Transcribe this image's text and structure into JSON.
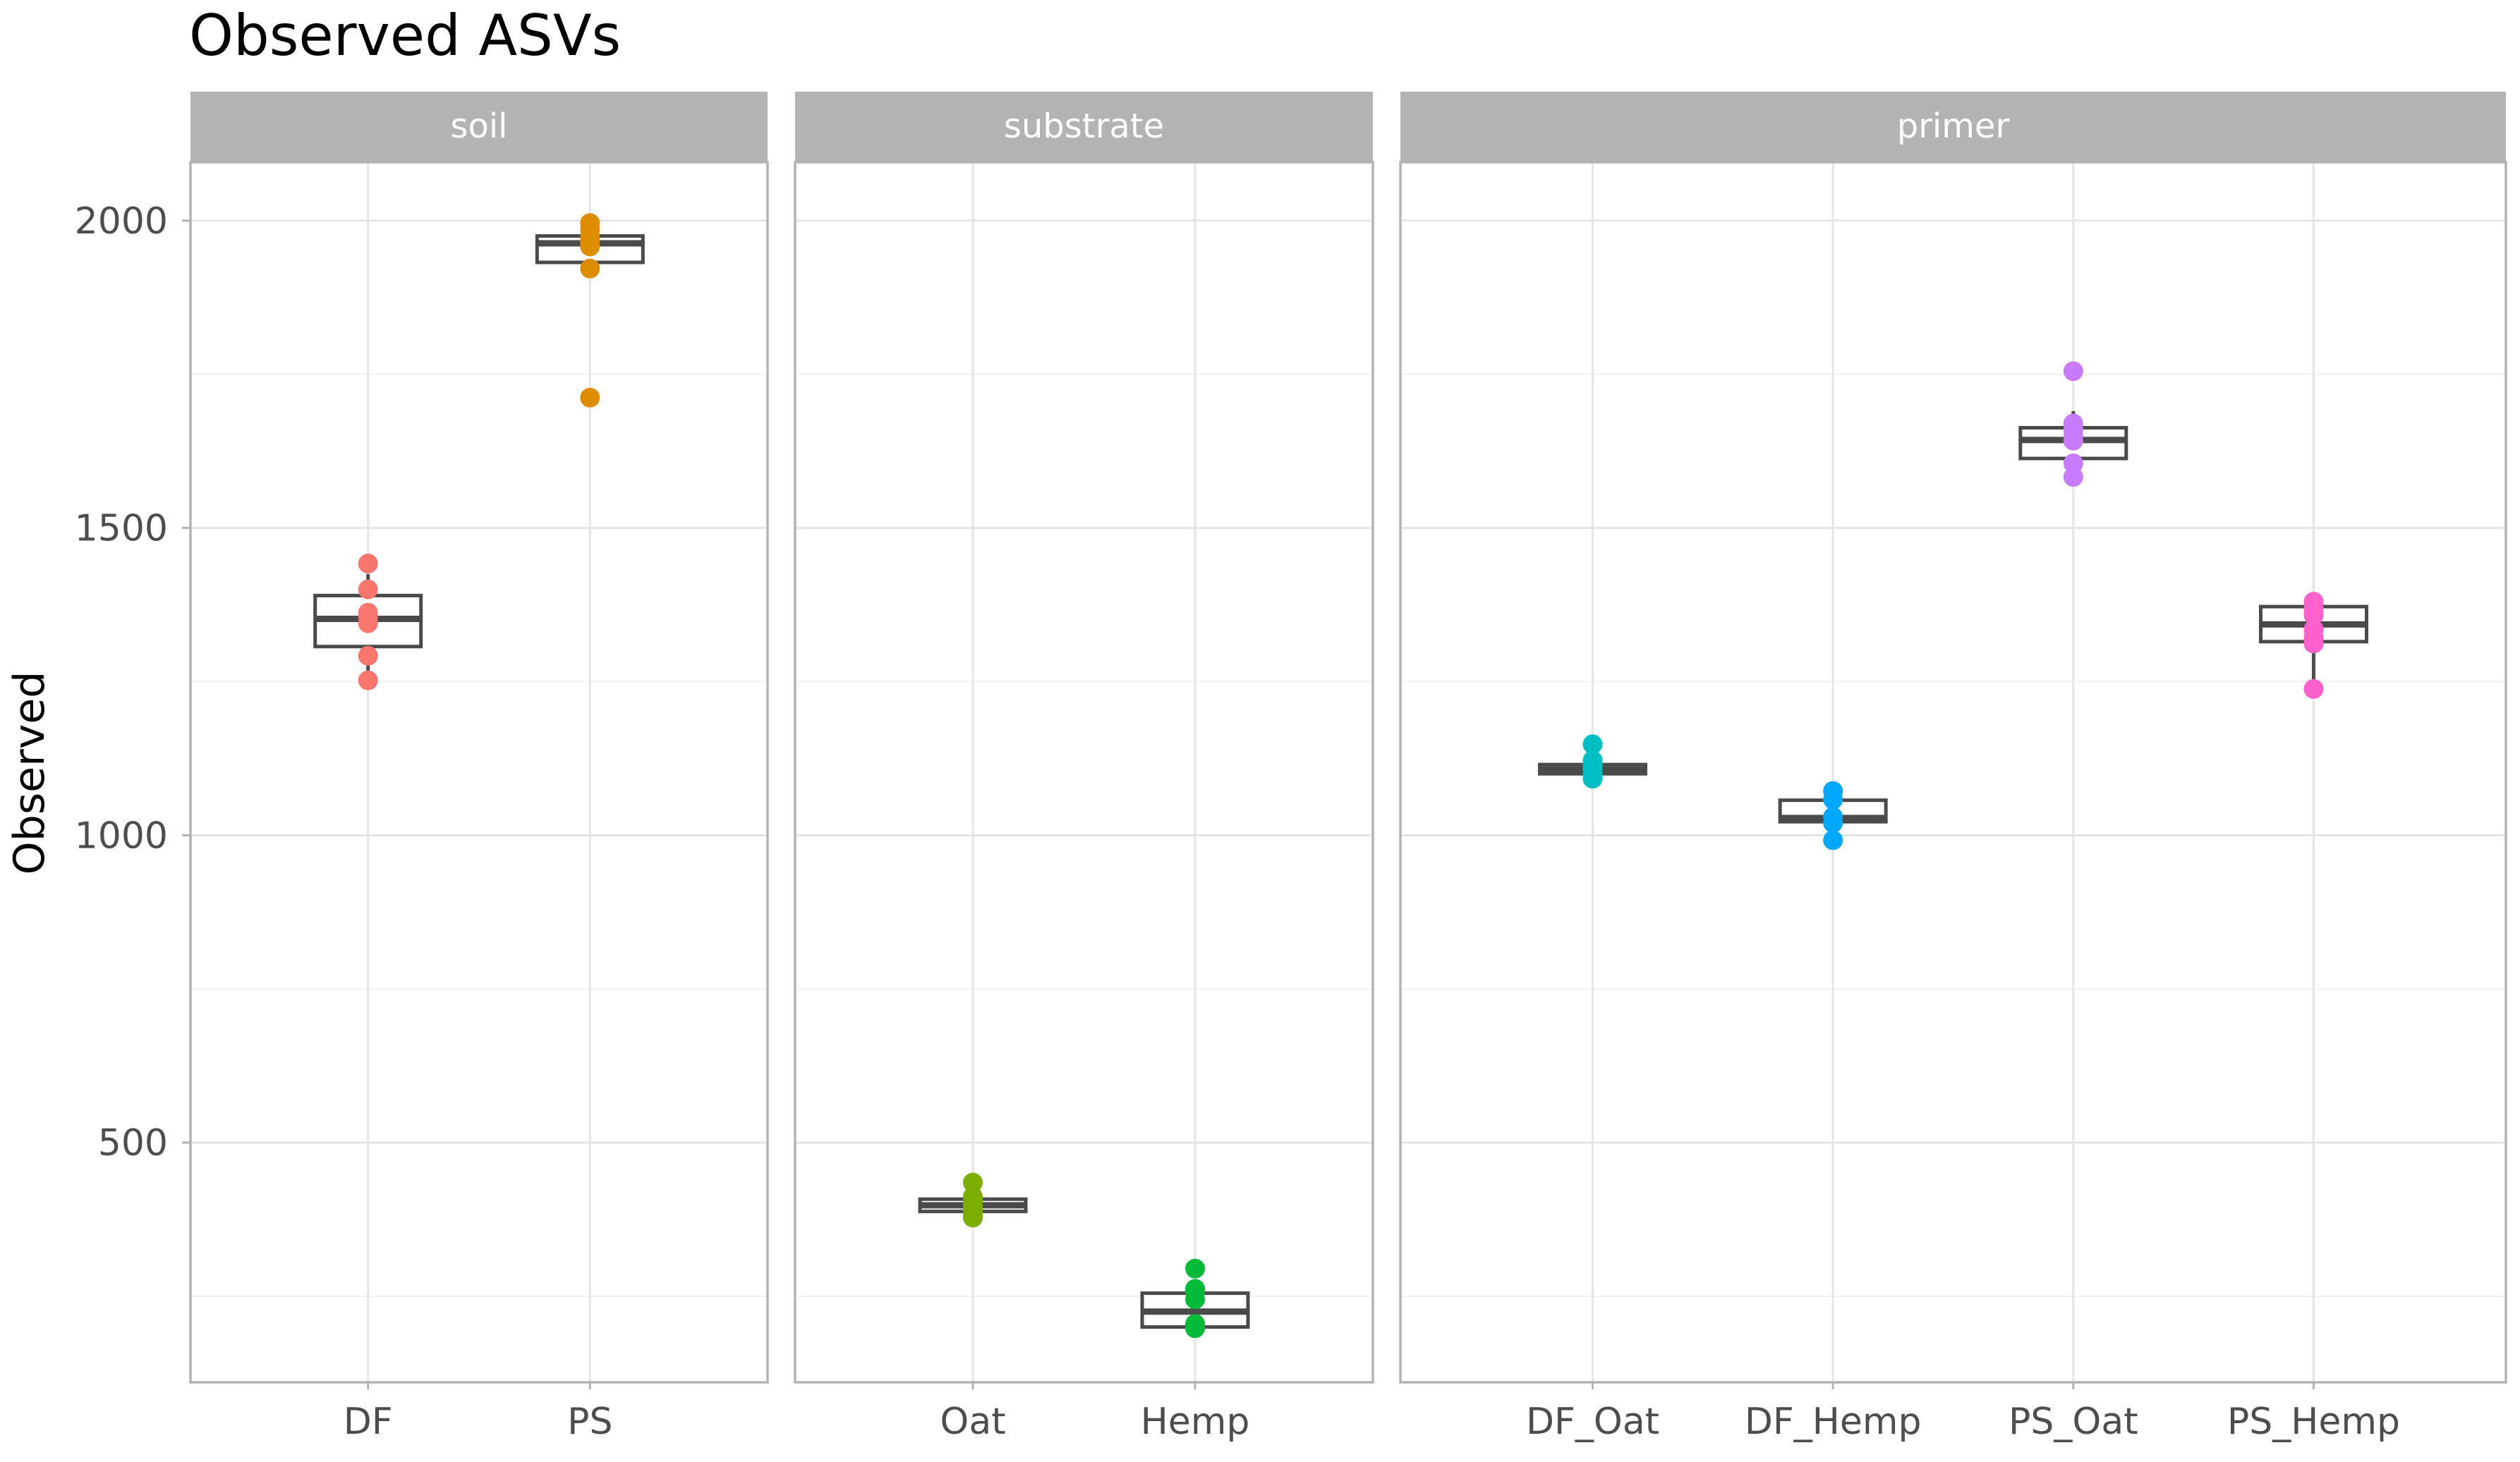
{
  "chart_data": {
    "type": "boxplot",
    "title": "Observed ASVs",
    "xlabel": "",
    "ylabel": "Observed",
    "ylim": [
      110,
      2095
    ],
    "y_ticks": [
      500,
      1000,
      1500,
      2000
    ],
    "y_tick_labels": [
      "500",
      "1000",
      "1500",
      "2000"
    ],
    "grid": true,
    "panels": [
      {
        "name": "soil",
        "categories": [
          {
            "label": "DF",
            "color": "#F8766D",
            "box": {
              "q1": 1307,
              "median": 1352,
              "q3": 1390,
              "min": 1265,
              "max": 1425
            },
            "points": [
              1252,
              1292,
              1345,
              1355,
              1362,
              1400,
              1442
            ]
          },
          {
            "label": "PS",
            "color": "#DE8C00",
            "box": {
              "q1": 1932,
              "median": 1963,
              "q3": 1975,
              "min": 1932,
              "max": 1975
            },
            "points": [
              1712,
              1922,
              1958,
              1965,
              1972,
              1985,
              1996
            ]
          }
        ]
      },
      {
        "name": "substrate",
        "categories": [
          {
            "label": "Oat",
            "color": "#7CAE00",
            "box": {
              "q1": 388,
              "median": 398,
              "q3": 408,
              "min": 388,
              "max": 408
            },
            "points": [
              378,
              385,
              392,
              398,
              405,
              412,
              435
            ]
          },
          {
            "label": "Hemp",
            "color": "#00BA38",
            "box": {
              "q1": 200,
              "median": 225,
              "q3": 255,
              "min": 200,
              "max": 255
            },
            "points": [
              198,
              205,
              245,
              258,
              262,
              295
            ]
          }
        ]
      },
      {
        "name": "primer",
        "categories": [
          {
            "label": "DF_Oat",
            "color": "#00BFC4",
            "box": {
              "q1": 1100,
              "median": 1107,
              "q3": 1115,
              "min": 1100,
              "max": 1115
            },
            "points": [
              1092,
              1100,
              1108,
              1115,
              1122,
              1148
            ]
          },
          {
            "label": "DF_Hemp",
            "color": "#00A9FF",
            "box": {
              "q1": 1022,
              "median": 1028,
              "q3": 1057,
              "min": 1022,
              "max": 1057
            },
            "points": [
              992,
              1020,
              1030,
              1058,
              1072
            ]
          },
          {
            "label": "PS_Oat",
            "color": "#C77CFF",
            "box": {
              "q1": 1613,
              "median": 1643,
              "q3": 1663,
              "min": 1590,
              "max": 1690
            },
            "points": [
              1583,
              1605,
              1642,
              1650,
              1660,
              1670,
              1755
            ]
          },
          {
            "label": "PS_Hemp",
            "color": "#FF61CC",
            "box": {
              "q1": 1315,
              "median": 1343,
              "q3": 1372,
              "min": 1240,
              "max": 1372
            },
            "points": [
              1238,
              1312,
              1322,
              1335,
              1358,
              1368,
              1380
            ]
          }
        ]
      }
    ]
  }
}
